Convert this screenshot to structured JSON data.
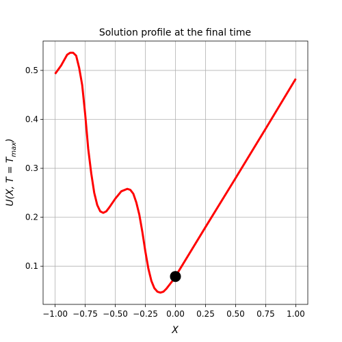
{
  "chart_data": {
    "type": "line",
    "title": "Solution profile at the final time",
    "xlabel": "X",
    "ylabel": [
      "U(X, T = T",
      "max",
      ")"
    ],
    "x": [
      -1.0,
      -0.95,
      -0.9,
      -0.875,
      -0.85,
      -0.825,
      -0.8,
      -0.775,
      -0.75,
      -0.725,
      -0.7,
      -0.675,
      -0.65,
      -0.625,
      -0.6,
      -0.575,
      -0.55,
      -0.5,
      -0.45,
      -0.4,
      -0.375,
      -0.35,
      -0.325,
      -0.3,
      -0.275,
      -0.25,
      -0.225,
      -0.2,
      -0.175,
      -0.15,
      -0.125,
      -0.1,
      -0.075,
      -0.05,
      -0.025,
      0.0,
      0.25,
      0.5,
      0.75,
      1.0
    ],
    "series": [
      {
        "color": "#ff0000",
        "values": [
          0.493,
          0.51,
          0.532,
          0.536,
          0.536,
          0.53,
          0.505,
          0.47,
          0.41,
          0.34,
          0.29,
          0.25,
          0.225,
          0.212,
          0.209,
          0.212,
          0.22,
          0.238,
          0.253,
          0.258,
          0.256,
          0.248,
          0.23,
          0.205,
          0.17,
          0.13,
          0.095,
          0.07,
          0.055,
          0.048,
          0.046,
          0.048,
          0.054,
          0.062,
          0.07,
          0.079,
          0.18,
          0.28,
          0.381,
          0.483
        ]
      }
    ],
    "points": [
      {
        "x": 0.0,
        "y": 0.079,
        "color": "#000000"
      }
    ],
    "xlim": [
      -1.1,
      1.1
    ],
    "ylim": [
      0.022,
      0.56
    ],
    "xticks": [
      {
        "value": -1.0,
        "label": "−1.00"
      },
      {
        "value": -0.75,
        "label": "−0.75"
      },
      {
        "value": -0.5,
        "label": "−0.50"
      },
      {
        "value": -0.25,
        "label": "−0.25"
      },
      {
        "value": 0,
        "label": "0.00"
      },
      {
        "value": 0.25,
        "label": "0.25"
      },
      {
        "value": 0.5,
        "label": "0.50"
      },
      {
        "value": 0.75,
        "label": "0.75"
      },
      {
        "value": 1.0,
        "label": "1.00"
      }
    ],
    "yticks": [
      0.1,
      0.2,
      0.3,
      0.4,
      0.5
    ],
    "grid": true
  }
}
